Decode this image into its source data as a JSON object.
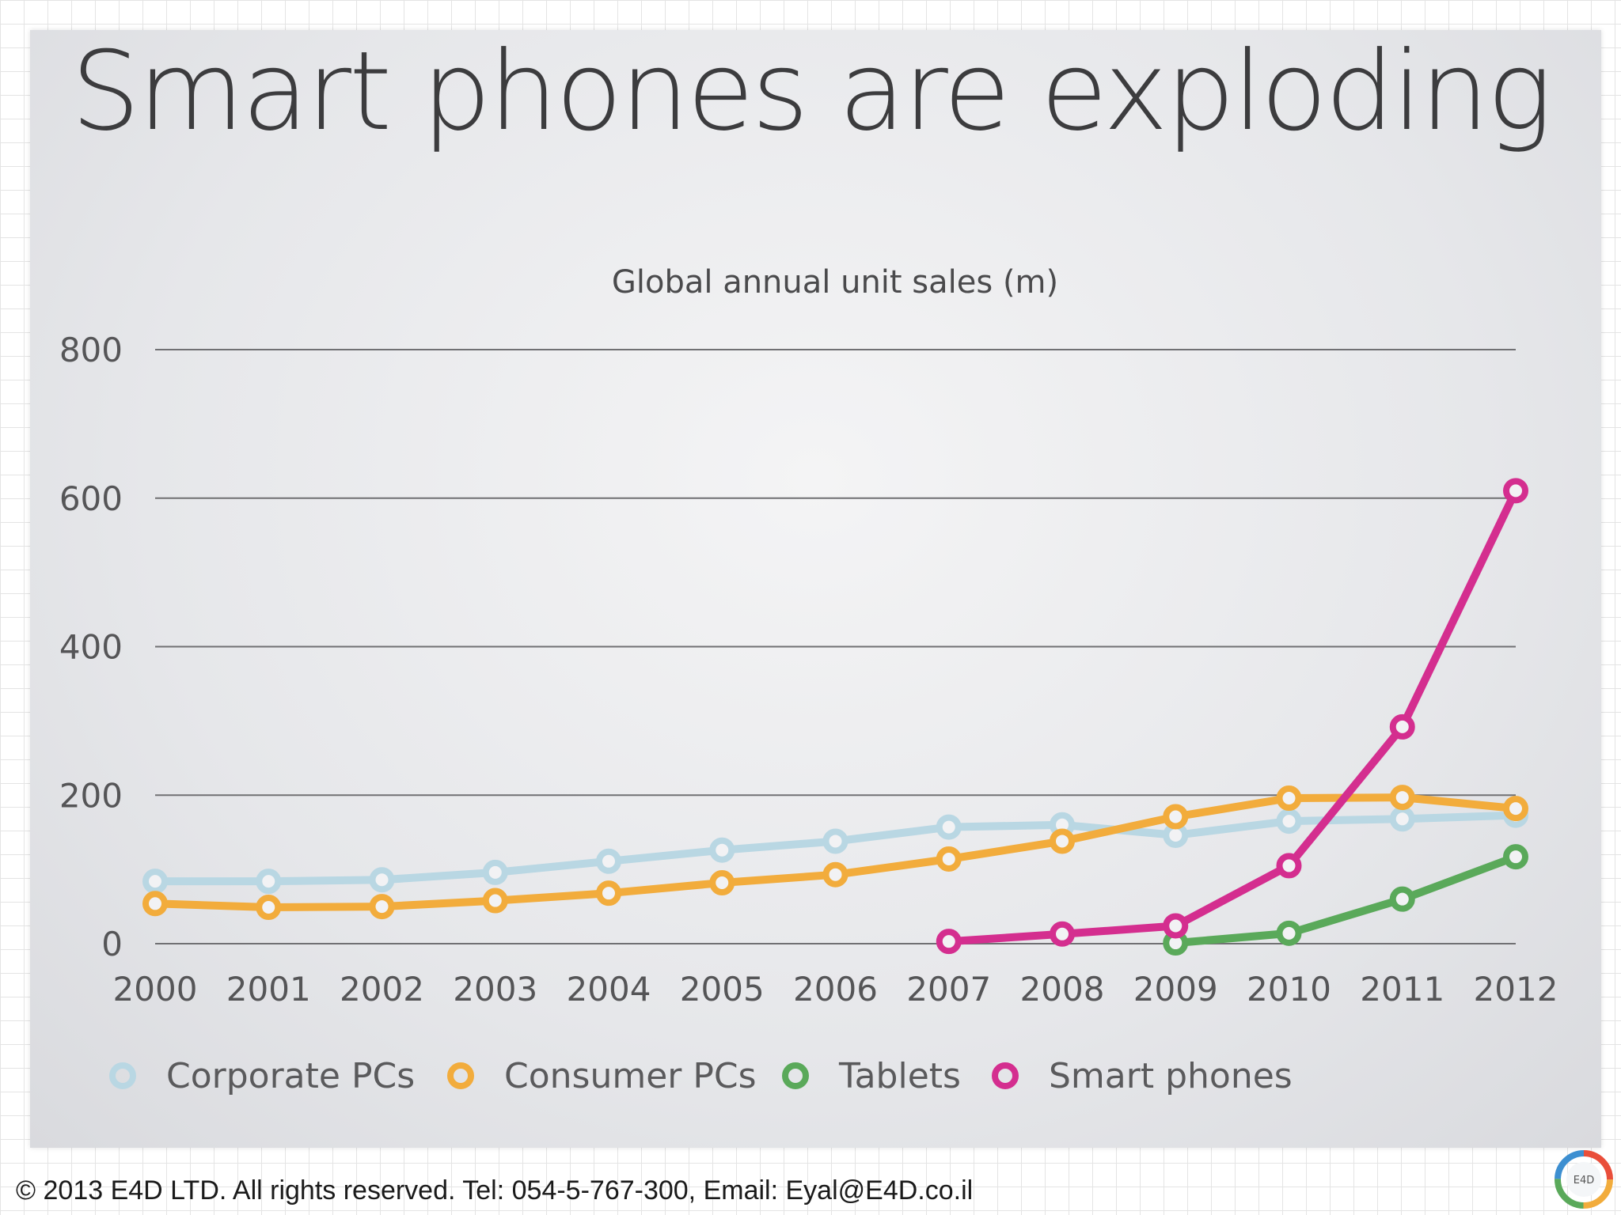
{
  "slide": {
    "title": "Smart phones are exploding",
    "footer": "© 2013 E4D LTD. All rights reserved. Tel: 054-5-767-300, Email: Eyal@E4D.co.il",
    "logo_text": "E4D"
  },
  "chart_data": {
    "type": "line",
    "title": "Global annual unit sales (m)",
    "xlabel": "",
    "ylabel": "",
    "x": [
      "2000",
      "2001",
      "2002",
      "2003",
      "2004",
      "2005",
      "2006",
      "2007",
      "2008",
      "2009",
      "2010",
      "2011",
      "2012"
    ],
    "ylim": [
      0,
      800
    ],
    "yticks": [
      0,
      200,
      400,
      600,
      800
    ],
    "grid": true,
    "legend_position": "bottom",
    "series": [
      {
        "name": "Corporate PCs",
        "color": "#b9d7e3",
        "values": [
          84,
          84,
          86,
          96,
          111,
          126,
          138,
          157,
          160,
          146,
          165,
          168,
          173
        ]
      },
      {
        "name": "Consumer PCs",
        "color": "#f2ac3c",
        "values": [
          54,
          49,
          50,
          58,
          68,
          82,
          93,
          114,
          138,
          171,
          196,
          197,
          182
        ]
      },
      {
        "name": "Tablets",
        "color": "#5aa95a",
        "values": [
          null,
          null,
          null,
          null,
          null,
          null,
          null,
          null,
          null,
          1,
          14,
          60,
          117
        ]
      },
      {
        "name": "Smart phones",
        "color": "#d42e8f",
        "values": [
          null,
          null,
          null,
          null,
          null,
          null,
          null,
          3,
          13,
          24,
          105,
          292,
          610
        ]
      }
    ]
  }
}
